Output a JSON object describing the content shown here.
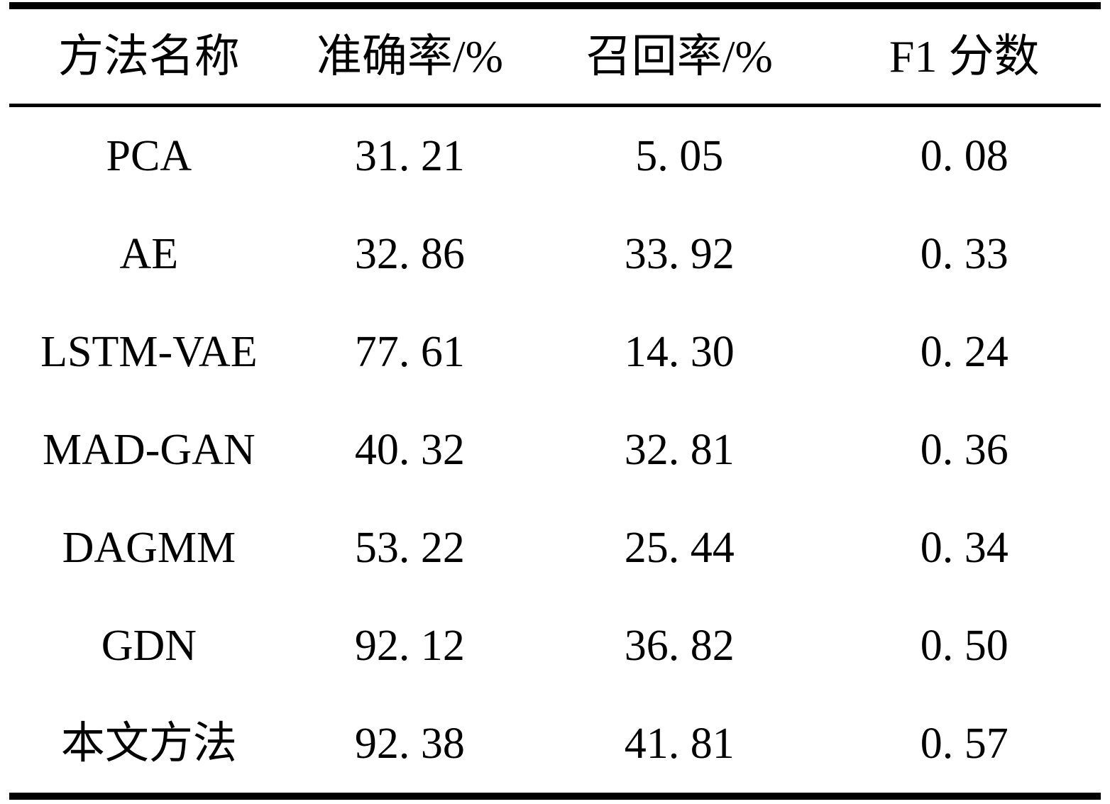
{
  "table": {
    "columns": [
      {
        "key": "method",
        "label": "方法名称"
      },
      {
        "key": "precision",
        "label": "准确率/%"
      },
      {
        "key": "recall",
        "label": "召回率/%"
      },
      {
        "key": "f1",
        "label": "F1 分数"
      }
    ],
    "rows": [
      {
        "method": "PCA",
        "precision": "31. 21",
        "recall": "5. 05",
        "f1": "0. 08"
      },
      {
        "method": "AE",
        "precision": "32. 86",
        "recall": "33. 92",
        "f1": "0. 33"
      },
      {
        "method": "LSTM-VAE",
        "precision": "77. 61",
        "recall": "14. 30",
        "f1": "0. 24"
      },
      {
        "method": "MAD-GAN",
        "precision": "40. 32",
        "recall": "32. 81",
        "f1": "0. 36"
      },
      {
        "method": "DAGMM",
        "precision": "53. 22",
        "recall": "25. 44",
        "f1": "0. 34"
      },
      {
        "method": "GDN",
        "precision": "92. 12",
        "recall": "36. 82",
        "f1": "0. 50"
      },
      {
        "method": "本文方法",
        "precision": "92. 38",
        "recall": "41. 81",
        "f1": "0. 57"
      }
    ]
  },
  "chart_data": {
    "type": "table",
    "columns": [
      "方法名称",
      "准确率/%",
      "召回率/%",
      "F1 分数"
    ],
    "rows": [
      [
        "PCA",
        31.21,
        5.05,
        0.08
      ],
      [
        "AE",
        32.86,
        33.92,
        0.33
      ],
      [
        "LSTM-VAE",
        77.61,
        14.3,
        0.24
      ],
      [
        "MAD-GAN",
        40.32,
        32.81,
        0.36
      ],
      [
        "DAGMM",
        53.22,
        25.44,
        0.34
      ],
      [
        "GDN",
        92.12,
        36.82,
        0.5
      ],
      [
        "本文方法",
        92.38,
        41.81,
        0.57
      ]
    ]
  },
  "colors": {
    "text": "#000000",
    "background": "#ffffff",
    "rule": "#000000"
  }
}
